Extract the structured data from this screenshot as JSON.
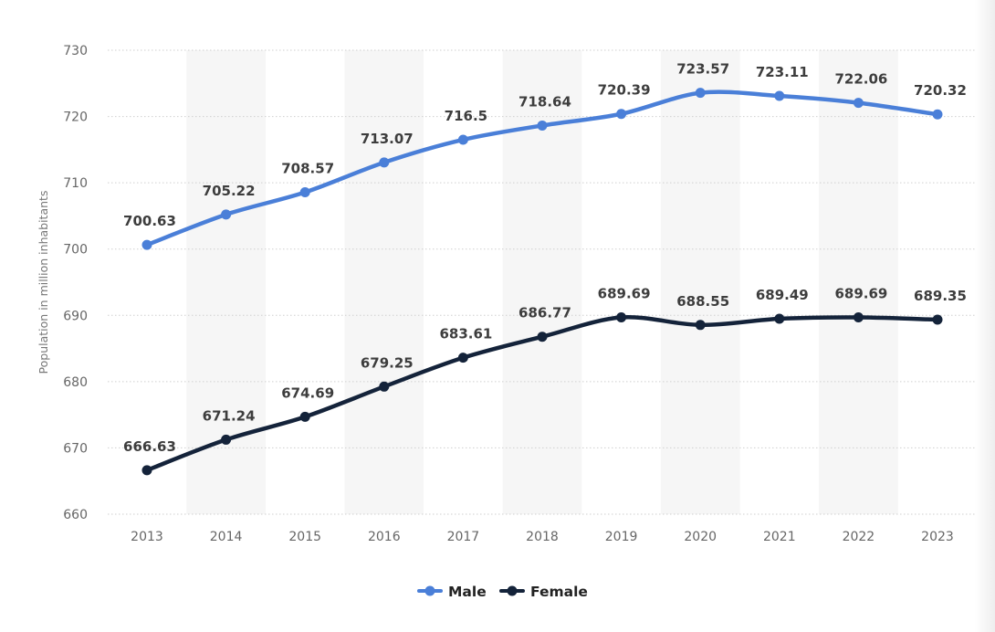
{
  "chart_data": {
    "type": "line",
    "title": "",
    "xlabel": "",
    "ylabel": "Population in million inhabitants",
    "categories": [
      "2013",
      "2014",
      "2015",
      "2016",
      "2017",
      "2018",
      "2019",
      "2020",
      "2021",
      "2022",
      "2023"
    ],
    "ylim": [
      660,
      730
    ],
    "yticks": [
      660,
      670,
      680,
      690,
      700,
      710,
      720,
      730
    ],
    "grid": true,
    "legend_position": "bottom-center",
    "series": [
      {
        "name": "Male",
        "color": "#4a7fd8",
        "values": [
          700.63,
          705.22,
          708.57,
          713.07,
          716.5,
          718.64,
          720.39,
          723.57,
          723.11,
          722.06,
          720.32
        ],
        "labels": [
          "700.63",
          "705.22",
          "708.57",
          "713.07",
          "716.5",
          "718.64",
          "720.39",
          "723.57",
          "723.11",
          "722.06",
          "720.32"
        ]
      },
      {
        "name": "Female",
        "color": "#14233a",
        "values": [
          666.63,
          671.24,
          674.69,
          679.25,
          683.61,
          686.77,
          689.69,
          688.55,
          689.49,
          689.69,
          689.35
        ],
        "labels": [
          "666.63",
          "671.24",
          "674.69",
          "679.25",
          "683.61",
          "686.77",
          "689.69",
          "688.55",
          "689.49",
          "689.69",
          "689.35"
        ]
      }
    ]
  }
}
